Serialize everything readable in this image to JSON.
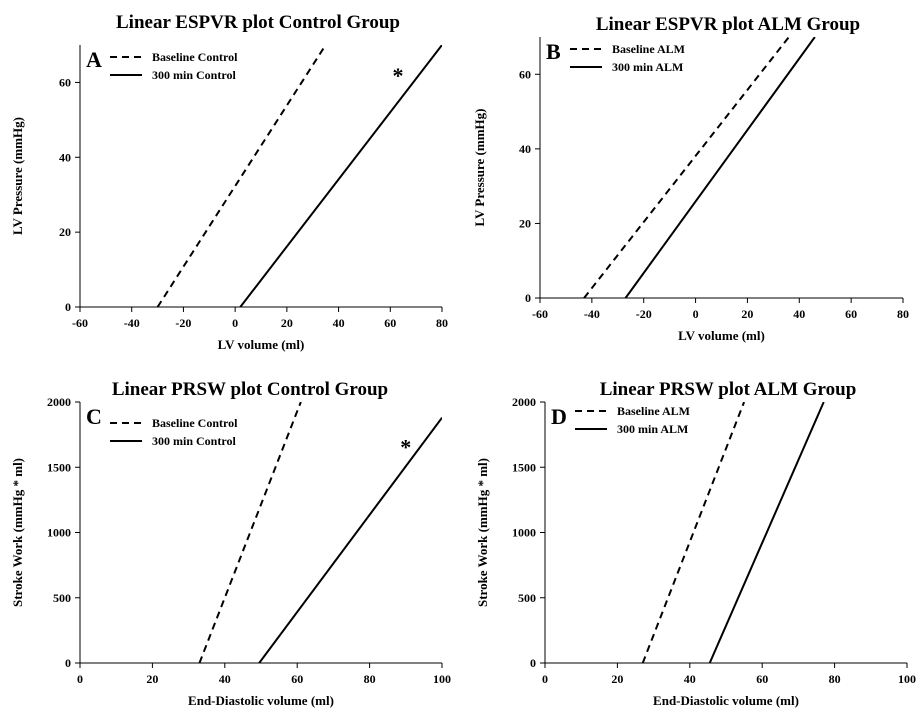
{
  "chart_data": [
    {
      "type": "line",
      "panel_label": "A",
      "title": "Linear ESPVR plot Control Group",
      "xlabel": "LV volume (ml)",
      "ylabel": "LV Pressure (mmHg)",
      "xlim": [
        -60,
        80
      ],
      "ylim": [
        0,
        70
      ],
      "xticks": [
        "-60",
        "-40",
        "-20",
        "0",
        "20",
        "40",
        "60",
        "80"
      ],
      "yticks": [
        "0",
        "20",
        "40",
        "60"
      ],
      "legend_position": "top-left",
      "series": [
        {
          "name": "Baseline Control",
          "style": "dashed",
          "x": [
            -30,
            35
          ],
          "y": [
            0,
            70
          ]
        },
        {
          "name": "300 min Control",
          "style": "solid",
          "x": [
            2,
            80
          ],
          "y": [
            0,
            70
          ]
        }
      ],
      "annotation": {
        "text": "*",
        "x": 63,
        "y": 62
      }
    },
    {
      "type": "line",
      "panel_label": "B",
      "title": "Linear ESPVR plot ALM Group",
      "xlabel": "LV volume (ml)",
      "ylabel": "LV Pressure (mmHg)",
      "xlim": [
        -60,
        80
      ],
      "ylim": [
        0,
        70
      ],
      "xticks": [
        "-60",
        "-40",
        "-20",
        "0",
        "20",
        "40",
        "60",
        "80"
      ],
      "yticks": [
        "0",
        "20",
        "40",
        "60"
      ],
      "legend_position": "top-left",
      "series": [
        {
          "name": "Baseline ALM",
          "style": "dashed",
          "x": [
            -43,
            36
          ],
          "y": [
            0,
            70
          ]
        },
        {
          "name": "300 min ALM",
          "style": "solid",
          "x": [
            -27,
            46
          ],
          "y": [
            0,
            70
          ]
        }
      ]
    },
    {
      "type": "line",
      "panel_label": "C",
      "title": "Linear PRSW plot Control Group",
      "xlabel": "End-Diastolic volume (ml)",
      "ylabel": "Stroke Work (mmHg * ml)",
      "xlim": [
        0,
        100
      ],
      "ylim": [
        0,
        2000
      ],
      "xticks": [
        "0",
        "20",
        "40",
        "60",
        "80",
        "100"
      ],
      "yticks": [
        "0",
        "500",
        "1000",
        "1500",
        "2000"
      ],
      "legend_position": "top-left",
      "series": [
        {
          "name": "Baseline Control",
          "style": "dashed",
          "x": [
            33,
            61
          ],
          "y": [
            0,
            2000
          ]
        },
        {
          "name": "300 min Control",
          "style": "solid",
          "x": [
            49.5,
            100
          ],
          "y": [
            0,
            1880
          ]
        }
      ],
      "annotation": {
        "text": "*",
        "x": 90,
        "y": 1660
      }
    },
    {
      "type": "line",
      "panel_label": "D",
      "title": "Linear  PRSW plot ALM Group",
      "xlabel": "End-Diastolic volume (ml)",
      "ylabel": "Stroke Work (mmHg * ml)",
      "xlim": [
        0,
        100
      ],
      "ylim": [
        0,
        2000
      ],
      "xticks": [
        "0",
        "20",
        "40",
        "60",
        "80",
        "100"
      ],
      "yticks": [
        "0",
        "500",
        "1000",
        "1500",
        "2000"
      ],
      "legend_position": "top-left",
      "series": [
        {
          "name": "Baseline ALM",
          "style": "dashed",
          "x": [
            27,
            55
          ],
          "y": [
            0,
            2000
          ]
        },
        {
          "name": "300 min ALM",
          "style": "solid",
          "x": [
            45.5,
            77
          ],
          "y": [
            0,
            2000
          ]
        }
      ]
    }
  ]
}
